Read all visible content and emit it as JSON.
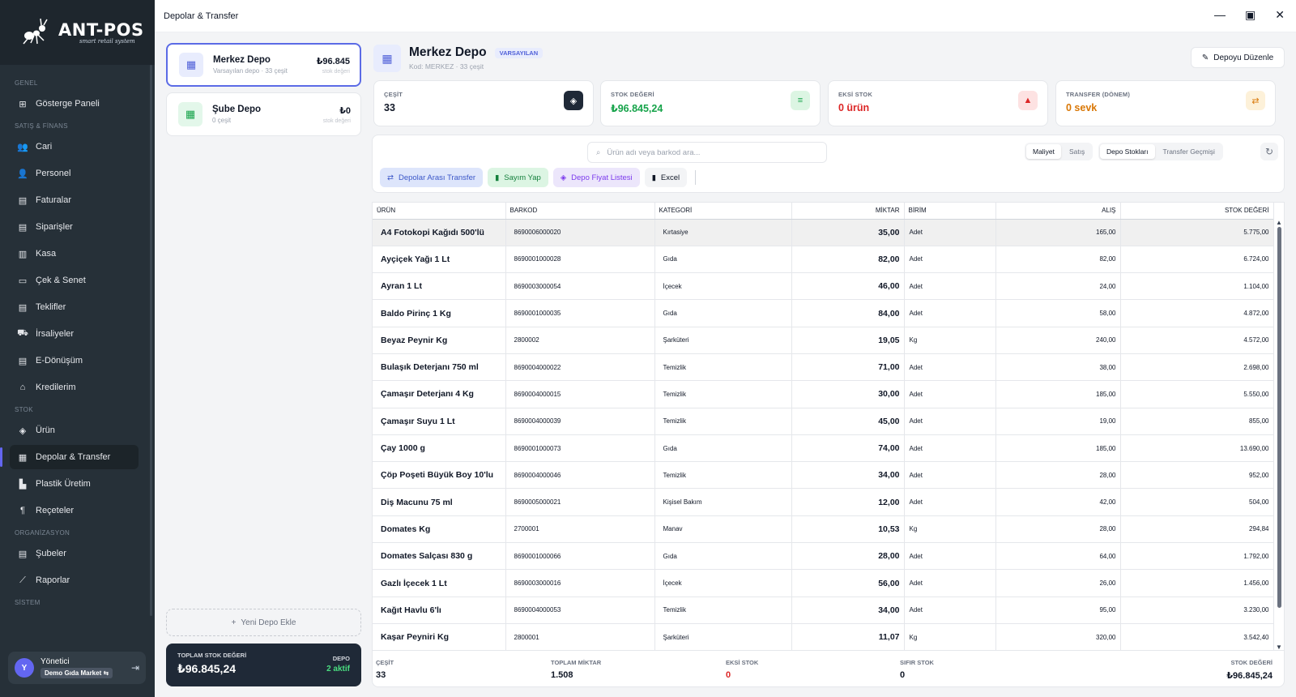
{
  "app": {
    "logo_title": "ANT-POS",
    "logo_sub": "smart retail system",
    "window_title": "Depolar & Transfer"
  },
  "sidebar": {
    "sections": [
      {
        "label": "GENEL",
        "items": [
          {
            "label": "Gösterge Paneli",
            "icon": "dashboard-icon",
            "glyph": "⊞"
          }
        ]
      },
      {
        "label": "SATIŞ & FİNANS",
        "items": [
          {
            "label": "Cari",
            "icon": "users-icon",
            "glyph": "👥"
          },
          {
            "label": "Personel",
            "icon": "user-tie-icon",
            "glyph": "👤"
          },
          {
            "label": "Faturalar",
            "icon": "file-icon",
            "glyph": "▤"
          },
          {
            "label": "Siparişler",
            "icon": "file-icon",
            "glyph": "▤"
          },
          {
            "label": "Kasa",
            "icon": "cash-register-icon",
            "glyph": "▥"
          },
          {
            "label": "Çek & Senet",
            "icon": "check-icon",
            "glyph": "▭"
          },
          {
            "label": "Teklifler",
            "icon": "file-icon",
            "glyph": "▤"
          },
          {
            "label": "İrsaliyeler",
            "icon": "truck-icon",
            "glyph": "⛟"
          },
          {
            "label": "E-Dönüşüm",
            "icon": "file-icon",
            "glyph": "▤"
          },
          {
            "label": "Kredilerim",
            "icon": "bank-icon",
            "glyph": "⌂"
          }
        ]
      },
      {
        "label": "STOK",
        "items": [
          {
            "label": "Ürün",
            "icon": "tag-icon",
            "glyph": "◈"
          },
          {
            "label": "Depolar & Transfer",
            "icon": "warehouse-icon",
            "glyph": "▦",
            "active": true
          },
          {
            "label": "Plastik Üretim",
            "icon": "factory-icon",
            "glyph": "▙"
          },
          {
            "label": "Reçeteler",
            "icon": "utensils-icon",
            "glyph": "¶"
          }
        ]
      },
      {
        "label": "ORGANİZASYON",
        "items": [
          {
            "label": "Şubeler",
            "icon": "building-icon",
            "glyph": "▤"
          },
          {
            "label": "Raporlar",
            "icon": "chart-line-icon",
            "glyph": "⟋"
          }
        ]
      },
      {
        "label": "SİSTEM",
        "items": []
      }
    ],
    "user": {
      "initial": "Y",
      "name": "Yönetici",
      "store": "Demo Gıda Market ⇆"
    }
  },
  "depots": [
    {
      "name": "Merkez Depo",
      "sub": "Varsayılan depo · 33 çeşit",
      "amount": "₺96.845",
      "amount_label": "stok değeri",
      "selected": true,
      "color": "blue"
    },
    {
      "name": "Şube Depo",
      "sub": "0 çeşit",
      "amount": "₺0",
      "amount_label": "stok değeri",
      "selected": false,
      "color": "green"
    }
  ],
  "add_depot_label": "Yeni Depo Ekle",
  "totals": {
    "label": "TOPLAM STOK DEĞERİ",
    "value": "₺96.845,24",
    "depot_label": "DEPO",
    "depot_count": "2 aktif"
  },
  "header": {
    "title": "Merkez Depo",
    "badge": "VARSAYILAN",
    "sub": "Kod: MERKEZ  ·  33 çeşit",
    "edit_label": "Depoyu Düzenle"
  },
  "stats": [
    {
      "label": "ÇEŞİT",
      "value": "33",
      "color": "#111827",
      "icon_bg": "#1f2937",
      "icon_color": "#ffffff",
      "glyph": "◈",
      "icon": "tag-icon"
    },
    {
      "label": "STOK DEĞERİ",
      "value": "₺96.845,24",
      "color": "#16a34a",
      "icon_bg": "#dcf5e3",
      "icon_color": "#16a34a",
      "glyph": "≡",
      "icon": "coins-icon"
    },
    {
      "label": "EKSİ STOK",
      "value": "0 ürün",
      "color": "#dc2626",
      "icon_bg": "#fde2e2",
      "icon_color": "#dc2626",
      "glyph": "▲",
      "icon": "warning-icon"
    },
    {
      "label": "TRANSFER (DÖNEM)",
      "value": "0 sevk",
      "color": "#d97706",
      "icon_bg": "#fdf1d9",
      "icon_color": "#d97706",
      "glyph": "⇄",
      "icon": "transfer-icon"
    }
  ],
  "toolbar": {
    "search_placeholder": "Ürün adı veya barkod ara...",
    "price_modes": [
      "Maliyet",
      "Satış"
    ],
    "views": [
      "Depo Stokları",
      "Transfer Geçmişi"
    ],
    "actions": [
      {
        "label": "Depolar Arası Transfer",
        "style": "blue",
        "glyph": "⇄",
        "icon": "transfer-icon"
      },
      {
        "label": "Sayım Yap",
        "style": "green",
        "glyph": "▮",
        "icon": "clipboard-icon"
      },
      {
        "label": "Depo Fiyat Listesi",
        "style": "purple",
        "glyph": "◈",
        "icon": "tags-icon"
      },
      {
        "label": "Excel",
        "style": "gray",
        "glyph": "▮",
        "icon": "excel-icon"
      }
    ]
  },
  "table": {
    "columns": [
      "ÜRÜN",
      "BARKOD",
      "KATEGORİ",
      "MİKTAR",
      "BİRİM",
      "ALIŞ",
      "STOK DEĞERİ"
    ],
    "rows": [
      [
        "A4 Fotokopi Kağıdı 500'lü",
        "8690006000020",
        "Kırtasiye",
        "35,00",
        "Adet",
        "165,00",
        "5.775,00"
      ],
      [
        "Ayçiçek Yağı 1 Lt",
        "8690001000028",
        "Gıda",
        "82,00",
        "Adet",
        "82,00",
        "6.724,00"
      ],
      [
        "Ayran 1 Lt",
        "8690003000054",
        "İçecek",
        "46,00",
        "Adet",
        "24,00",
        "1.104,00"
      ],
      [
        "Baldo Pirinç 1 Kg",
        "8690001000035",
        "Gıda",
        "84,00",
        "Adet",
        "58,00",
        "4.872,00"
      ],
      [
        "Beyaz Peynir Kg",
        "2800002",
        "Şarküteri",
        "19,05",
        "Kg",
        "240,00",
        "4.572,00"
      ],
      [
        "Bulaşık Deterjanı 750 ml",
        "8690004000022",
        "Temizlik",
        "71,00",
        "Adet",
        "38,00",
        "2.698,00"
      ],
      [
        "Çamaşır Deterjanı 4 Kg",
        "8690004000015",
        "Temizlik",
        "30,00",
        "Adet",
        "185,00",
        "5.550,00"
      ],
      [
        "Çamaşır Suyu 1 Lt",
        "8690004000039",
        "Temizlik",
        "45,00",
        "Adet",
        "19,00",
        "855,00"
      ],
      [
        "Çay 1000 g",
        "8690001000073",
        "Gıda",
        "74,00",
        "Adet",
        "185,00",
        "13.690,00"
      ],
      [
        "Çöp Poşeti Büyük Boy 10'lu",
        "8690004000046",
        "Temizlik",
        "34,00",
        "Adet",
        "28,00",
        "952,00"
      ],
      [
        "Diş Macunu 75 ml",
        "8690005000021",
        "Kişisel Bakım",
        "12,00",
        "Adet",
        "42,00",
        "504,00"
      ],
      [
        "Domates Kg",
        "2700001",
        "Manav",
        "10,53",
        "Kg",
        "28,00",
        "294,84"
      ],
      [
        "Domates Salçası 830 g",
        "8690001000066",
        "Gıda",
        "28,00",
        "Adet",
        "64,00",
        "1.792,00"
      ],
      [
        "Gazlı İçecek 1 Lt",
        "8690003000016",
        "İçecek",
        "56,00",
        "Adet",
        "26,00",
        "1.456,00"
      ],
      [
        "Kağıt Havlu 6'lı",
        "8690004000053",
        "Temizlik",
        "34,00",
        "Adet",
        "95,00",
        "3.230,00"
      ],
      [
        "Kaşar Peyniri Kg",
        "2800001",
        "Şarküteri",
        "11,07",
        "Kg",
        "320,00",
        "3.542,40"
      ]
    ]
  },
  "summary": [
    {
      "label": "ÇEŞİT",
      "value": "33",
      "color": "#111827"
    },
    {
      "label": "TOPLAM MİKTAR",
      "value": "1.508",
      "color": "#111827"
    },
    {
      "label": "EKSİ STOK",
      "value": "0",
      "color": "#dc2626"
    },
    {
      "label": "SIFIR STOK",
      "value": "0",
      "color": "#111827"
    },
    {
      "label": "STOK DEĞERİ",
      "value": "₺96.845,24",
      "color": "#111827"
    }
  ]
}
